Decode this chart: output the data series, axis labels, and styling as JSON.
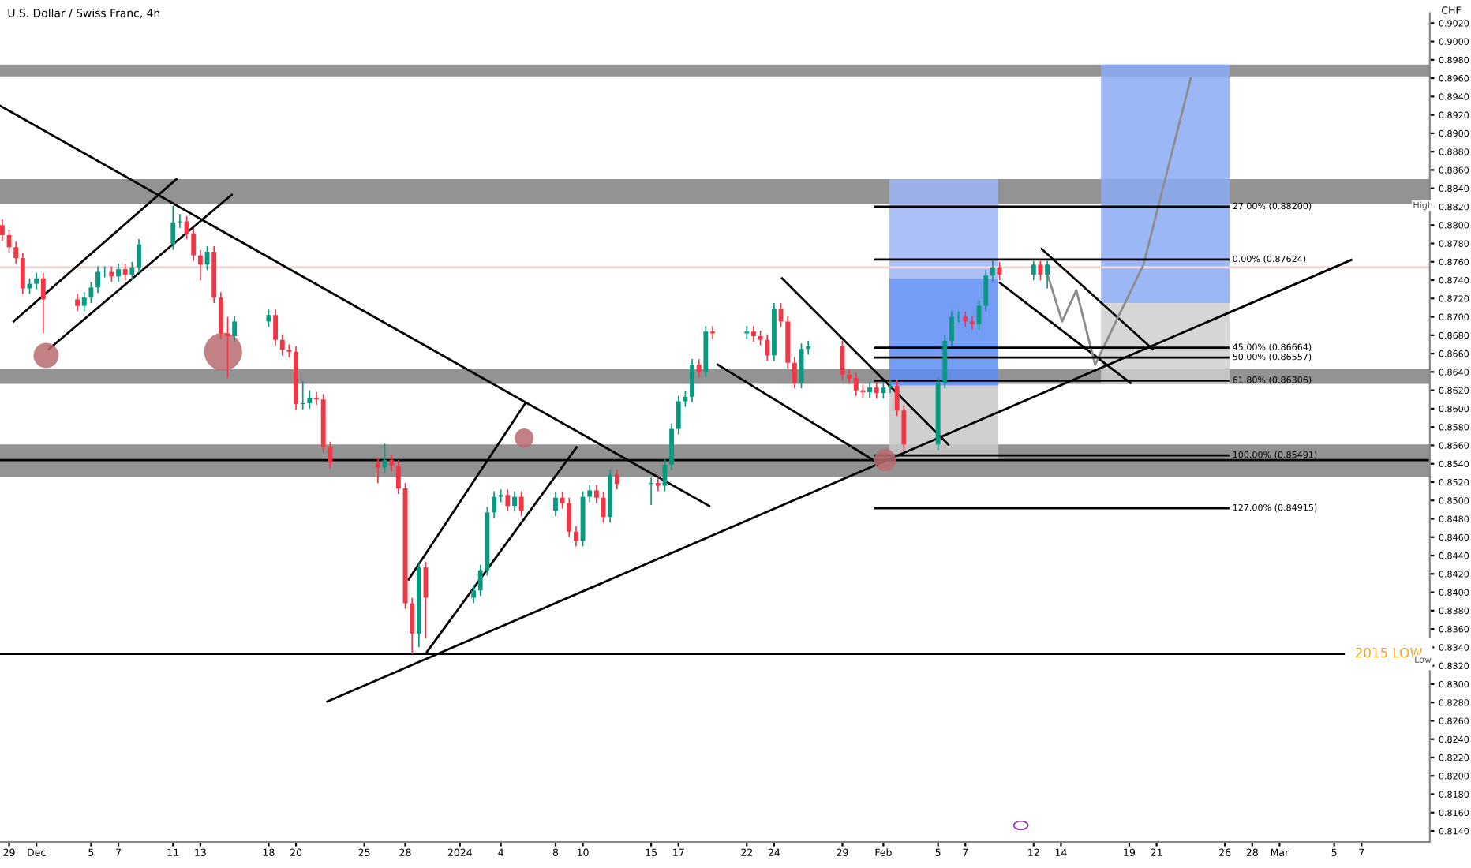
{
  "chart_data": {
    "type": "candlestick",
    "title": "U.S. Dollar / Swiss Franc, 4h",
    "ylabel": "CHF",
    "x": [
      "2023-11-28T12:00",
      "2023-11-29T00:00",
      "2023-11-29T12:00",
      "2023-11-30T00:00",
      "2023-11-30T12:00",
      "2023-12-01T00:00",
      "2023-12-01T12:00",
      "2023-12-04T00:00",
      "2023-12-04T12:00",
      "2023-12-05T00:00",
      "2023-12-05T12:00",
      "2023-12-06T00:00",
      "2023-12-06T12:00",
      "2023-12-07T00:00",
      "2023-12-07T12:00",
      "2023-12-08T00:00",
      "2023-12-08T12:00",
      "2023-12-11T00:00",
      "2023-12-11T12:00",
      "2023-12-12T00:00",
      "2023-12-12T12:00",
      "2023-12-13T00:00",
      "2023-12-13T12:00",
      "2023-12-14T00:00",
      "2023-12-14T12:00",
      "2023-12-15T00:00",
      "2023-12-15T12:00",
      "2023-12-18T00:00",
      "2023-12-18T12:00",
      "2023-12-19T00:00",
      "2023-12-19T12:00",
      "2023-12-20T00:00",
      "2023-12-20T12:00",
      "2023-12-21T00:00",
      "2023-12-21T12:00",
      "2023-12-22T00:00",
      "2023-12-22T12:00",
      "2023-12-26T00:00",
      "2023-12-26T12:00",
      "2023-12-27T00:00",
      "2023-12-27T12:00",
      "2023-12-28T00:00",
      "2023-12-28T12:00",
      "2023-12-29T00:00",
      "2023-12-29T12:00",
      "2024-01-02T00:00",
      "2024-01-02T12:00",
      "2024-01-03T00:00",
      "2024-01-03T12:00",
      "2024-01-04T00:00",
      "2024-01-04T12:00",
      "2024-01-05T00:00",
      "2024-01-05T12:00",
      "2024-01-08T00:00",
      "2024-01-08T12:00",
      "2024-01-09T00:00",
      "2024-01-09T12:00",
      "2024-01-10T00:00",
      "2024-01-10T12:00",
      "2024-01-11T00:00",
      "2024-01-11T12:00",
      "2024-01-12T00:00",
      "2024-01-12T12:00",
      "2024-01-15T00:00",
      "2024-01-15T12:00",
      "2024-01-16T00:00",
      "2024-01-16T12:00",
      "2024-01-17T00:00",
      "2024-01-17T12:00",
      "2024-01-18T00:00",
      "2024-01-18T12:00",
      "2024-01-19T00:00",
      "2024-01-19T12:00",
      "2024-01-22T00:00",
      "2024-01-22T12:00",
      "2024-01-23T00:00",
      "2024-01-23T12:00",
      "2024-01-24T00:00",
      "2024-01-24T12:00",
      "2024-01-25T00:00",
      "2024-01-25T12:00",
      "2024-01-26T00:00",
      "2024-01-26T12:00",
      "2024-01-29T00:00",
      "2024-01-29T12:00",
      "2024-01-30T00:00",
      "2024-01-30T12:00",
      "2024-01-31T00:00",
      "2024-01-31T12:00",
      "2024-02-01T00:00",
      "2024-02-01T12:00",
      "2024-02-02T00:00",
      "2024-02-02T12:00",
      "2024-02-05T00:00",
      "2024-02-05T12:00",
      "2024-02-06T00:00",
      "2024-02-06T12:00",
      "2024-02-07T00:00",
      "2024-02-07T12:00",
      "2024-02-08T00:00",
      "2024-02-08T12:00",
      "2024-02-09T00:00",
      "2024-02-09T12:00",
      "2024-02-12T00:00",
      "2024-02-12T12:00",
      "2024-02-13T00:00"
    ],
    "ohlc": [
      [
        0.88,
        0.8806,
        0.8783,
        0.8789
      ],
      [
        0.8789,
        0.8795,
        0.877,
        0.8776
      ],
      [
        0.8776,
        0.8782,
        0.8758,
        0.8764
      ],
      [
        0.8764,
        0.877,
        0.8725,
        0.8731
      ],
      [
        0.8731,
        0.8742,
        0.8725,
        0.8736
      ],
      [
        0.8736,
        0.8748,
        0.873,
        0.8742
      ],
      [
        0.8742,
        0.8748,
        0.8682,
        0.8719
      ],
      [
        0.8719,
        0.8725,
        0.8706,
        0.8712
      ],
      [
        0.8712,
        0.8727,
        0.8706,
        0.8721
      ],
      [
        0.8721,
        0.8738,
        0.8715,
        0.8732
      ],
      [
        0.8732,
        0.8755,
        0.8726,
        0.8749
      ],
      [
        0.8749,
        0.8755,
        0.8743,
        0.8749
      ],
      [
        0.8749,
        0.8755,
        0.8738,
        0.8744
      ],
      [
        0.8744,
        0.8758,
        0.8738,
        0.8752
      ],
      [
        0.8752,
        0.8758,
        0.874,
        0.8746
      ],
      [
        0.8746,
        0.876,
        0.874,
        0.8754
      ],
      [
        0.8754,
        0.8785,
        0.8748,
        0.8779
      ],
      [
        0.8779,
        0.8821,
        0.8773,
        0.8803
      ],
      [
        0.8803,
        0.8812,
        0.8797,
        0.8804
      ],
      [
        0.8804,
        0.881,
        0.8785,
        0.8791
      ],
      [
        0.8791,
        0.8797,
        0.8761,
        0.8767
      ],
      [
        0.8767,
        0.8773,
        0.874,
        0.8757
      ],
      [
        0.8757,
        0.8777,
        0.8751,
        0.8771
      ],
      [
        0.8771,
        0.8777,
        0.8715,
        0.8721
      ],
      [
        0.8721,
        0.8727,
        0.8676,
        0.8682
      ],
      [
        0.8682,
        0.87,
        0.8633,
        0.8679
      ],
      [
        0.8679,
        0.8701,
        0.8673,
        0.8695
      ],
      [
        0.8695,
        0.8708,
        0.8689,
        0.8702
      ],
      [
        0.8702,
        0.8708,
        0.8669,
        0.8675
      ],
      [
        0.8675,
        0.8681,
        0.8658,
        0.8664
      ],
      [
        0.8664,
        0.867,
        0.8656,
        0.8662
      ],
      [
        0.8662,
        0.8668,
        0.8599,
        0.8605
      ],
      [
        0.8605,
        0.863,
        0.8599,
        0.8606
      ],
      [
        0.8606,
        0.862,
        0.86,
        0.8612
      ],
      [
        0.8612,
        0.8618,
        0.8604,
        0.861
      ],
      [
        0.861,
        0.8616,
        0.8552,
        0.8558
      ],
      [
        0.8558,
        0.8564,
        0.8535,
        0.8541
      ],
      [
        0.8541,
        0.8547,
        0.8519,
        0.8536
      ],
      [
        0.8536,
        0.8562,
        0.853,
        0.8544
      ],
      [
        0.8544,
        0.855,
        0.8532,
        0.8538
      ],
      [
        0.8538,
        0.8544,
        0.8507,
        0.8513
      ],
      [
        0.8513,
        0.8519,
        0.8382,
        0.8388
      ],
      [
        0.8388,
        0.8394,
        0.8333,
        0.8355
      ],
      [
        0.8355,
        0.8433,
        0.834,
        0.8427
      ],
      [
        0.8427,
        0.8433,
        0.835,
        0.8394
      ],
      [
        0.8394,
        0.8408,
        0.8388,
        0.8402
      ],
      [
        0.8402,
        0.843,
        0.8396,
        0.8424
      ],
      [
        0.8424,
        0.8493,
        0.8418,
        0.8487
      ],
      [
        0.8487,
        0.851,
        0.8481,
        0.8504
      ],
      [
        0.8504,
        0.8512,
        0.8498,
        0.8506
      ],
      [
        0.8506,
        0.8512,
        0.8488,
        0.8494
      ],
      [
        0.8494,
        0.851,
        0.8488,
        0.8504
      ],
      [
        0.8504,
        0.851,
        0.8483,
        0.8489
      ],
      [
        0.8489,
        0.8509,
        0.8483,
        0.8503
      ],
      [
        0.8503,
        0.8509,
        0.8491,
        0.8497
      ],
      [
        0.8497,
        0.8503,
        0.846,
        0.8466
      ],
      [
        0.8466,
        0.8472,
        0.845,
        0.8456
      ],
      [
        0.8456,
        0.851,
        0.845,
        0.8504
      ],
      [
        0.8504,
        0.8517,
        0.8498,
        0.8511
      ],
      [
        0.8511,
        0.8517,
        0.8497,
        0.8503
      ],
      [
        0.8503,
        0.8509,
        0.8476,
        0.8482
      ],
      [
        0.8482,
        0.8534,
        0.8476,
        0.8528
      ],
      [
        0.8528,
        0.8534,
        0.8512,
        0.8518
      ],
      [
        0.8518,
        0.8525,
        0.8495,
        0.8519
      ],
      [
        0.8519,
        0.8525,
        0.851,
        0.8516
      ],
      [
        0.8516,
        0.8545,
        0.851,
        0.8539
      ],
      [
        0.8539,
        0.8584,
        0.8533,
        0.8578
      ],
      [
        0.8578,
        0.8614,
        0.8572,
        0.8608
      ],
      [
        0.8608,
        0.8619,
        0.8602,
        0.8613
      ],
      [
        0.8613,
        0.8654,
        0.8607,
        0.8648
      ],
      [
        0.8648,
        0.8654,
        0.8634,
        0.864
      ],
      [
        0.864,
        0.869,
        0.8634,
        0.8684
      ],
      [
        0.8684,
        0.869,
        0.8676,
        0.8682
      ],
      [
        0.8682,
        0.869,
        0.8676,
        0.8684
      ],
      [
        0.8684,
        0.869,
        0.8673,
        0.8679
      ],
      [
        0.8679,
        0.8685,
        0.8669,
        0.8675
      ],
      [
        0.8675,
        0.8681,
        0.8652,
        0.8658
      ],
      [
        0.8658,
        0.8715,
        0.8652,
        0.8709
      ],
      [
        0.8709,
        0.8715,
        0.8689,
        0.8695
      ],
      [
        0.8695,
        0.8701,
        0.8644,
        0.865
      ],
      [
        0.865,
        0.8656,
        0.8622,
        0.8628
      ],
      [
        0.8628,
        0.8671,
        0.8622,
        0.8665
      ],
      [
        0.8665,
        0.8674,
        0.8659,
        0.8668
      ],
      [
        0.8668,
        0.8674,
        0.8631,
        0.8637
      ],
      [
        0.8637,
        0.8643,
        0.8627,
        0.8633
      ],
      [
        0.8633,
        0.8639,
        0.8614,
        0.862
      ],
      [
        0.862,
        0.8626,
        0.8612,
        0.8618
      ],
      [
        0.8618,
        0.8629,
        0.8612,
        0.8623
      ],
      [
        0.8623,
        0.8629,
        0.8611,
        0.8617
      ],
      [
        0.8617,
        0.8629,
        0.8611,
        0.8623
      ],
      [
        0.8623,
        0.8631,
        0.8617,
        0.8625
      ],
      [
        0.8625,
        0.8631,
        0.8592,
        0.8598
      ],
      [
        0.8598,
        0.8604,
        0.8554,
        0.8561
      ],
      [
        0.8561,
        0.8634,
        0.8555,
        0.8628
      ],
      [
        0.8628,
        0.868,
        0.8622,
        0.8674
      ],
      [
        0.8674,
        0.8706,
        0.8668,
        0.87
      ],
      [
        0.87,
        0.8706,
        0.8694,
        0.87
      ],
      [
        0.87,
        0.8706,
        0.8689,
        0.8695
      ],
      [
        0.8695,
        0.8701,
        0.8686,
        0.8692
      ],
      [
        0.8692,
        0.8718,
        0.8686,
        0.8712
      ],
      [
        0.8712,
        0.8751,
        0.8706,
        0.8745
      ],
      [
        0.8745,
        0.8762,
        0.8739,
        0.8754
      ],
      [
        0.8754,
        0.876,
        0.874,
        0.8746
      ],
      [
        0.8746,
        0.8761,
        0.874,
        0.8757
      ],
      [
        0.8757,
        0.8761,
        0.874,
        0.8746
      ],
      [
        0.8746,
        0.8761,
        0.8731,
        0.8757
      ]
    ],
    "series": [
      {
        "type": "line",
        "x": [
          "2023-11-28T08:00",
          "2024-01-19T06:00"
        ],
        "values": [
          0.893,
          0.8494
        ],
        "color": "#000000"
      },
      {
        "type": "line",
        "x": [
          "2023-12-22T07:00",
          "2024-03-06T06:00"
        ],
        "values": [
          0.8281,
          0.8762
        ],
        "color": "#000000"
      },
      {
        "type": "line",
        "x": [
          "2023-11-29T08:00",
          "2023-12-11T06:00"
        ],
        "values": [
          0.8695,
          0.885
        ],
        "color": "#000000"
      },
      {
        "type": "line",
        "x": [
          "2023-12-01T22:00",
          "2023-12-15T07:00"
        ],
        "values": [
          0.8665,
          0.8833
        ],
        "color": "#000000"
      },
      {
        "type": "line",
        "x": [
          "2023-12-28T06:00",
          "2024-01-05T19:00"
        ],
        "values": [
          0.8414,
          0.8606
        ],
        "color": "#000000"
      },
      {
        "type": "line",
        "x": [
          "2023-12-29T14:00",
          "2024-01-09T13:00"
        ],
        "values": [
          0.8335,
          0.8558
        ],
        "color": "#000000"
      },
      {
        "type": "line",
        "x": [
          "2024-01-24T14:00",
          "2024-02-05T18:00"
        ],
        "values": [
          0.8742,
          0.8561
        ],
        "color": "#000000"
      },
      {
        "type": "line",
        "x": [
          "2024-01-19T21:00",
          "2024-01-31T14:00"
        ],
        "values": [
          0.8648,
          0.8541
        ],
        "color": "#000000"
      },
      {
        "type": "line",
        "x": [
          "2024-02-12T14:00",
          "2024-02-20T17:00"
        ],
        "values": [
          0.8774,
          0.8665
        ],
        "color": "#000000"
      },
      {
        "type": "line",
        "x": [
          "2024-02-09T13:00",
          "2024-02-19T02:00"
        ],
        "values": [
          0.8737,
          0.8628
        ],
        "color": "#000000"
      },
      {
        "type": "line",
        "x": [
          "2024-02-12T23:00",
          "2024-02-14T02:00",
          "2024-02-15T03:00",
          "2024-02-16T12:00",
          "2024-02-20T01:00",
          "2024-02-23T12:00"
        ],
        "values": [
          0.8749,
          0.8695,
          0.8729,
          0.8648,
          0.8757,
          0.896
        ],
        "color": "#8c8c8c"
      },
      {
        "type": "line",
        "name": "27.00% (0.88200)",
        "x": [
          "2024-01-31T10:00",
          "2024-02-26T06:00"
        ],
        "values": [
          0.882,
          0.882
        ],
        "color": "#000000"
      },
      {
        "type": "line",
        "name": "0.00% (0.87624)",
        "x": [
          "2024-01-31T10:00",
          "2024-02-26T06:00"
        ],
        "values": [
          0.87624,
          0.87624
        ],
        "color": "#000000"
      },
      {
        "type": "line",
        "name": "45.00% (0.86664)",
        "x": [
          "2024-01-31T10:00",
          "2024-02-26T06:00"
        ],
        "values": [
          0.86664,
          0.86664
        ],
        "color": "#000000"
      },
      {
        "type": "line",
        "name": "50.00% (0.86557)",
        "x": [
          "2024-01-31T10:00",
          "2024-02-26T06:00"
        ],
        "values": [
          0.86557,
          0.86557
        ],
        "color": "#000000"
      },
      {
        "type": "line",
        "name": "61.80% (0.86306)",
        "x": [
          "2024-01-31T10:00",
          "2024-02-26T06:00"
        ],
        "values": [
          0.86306,
          0.86306
        ],
        "color": "#000000"
      },
      {
        "type": "line",
        "name": "100.00% (0.85491)",
        "x": [
          "2024-01-31T10:00",
          "2024-02-26T06:00"
        ],
        "values": [
          0.85491,
          0.85491
        ],
        "color": "#000000"
      },
      {
        "type": "line",
        "name": "127.00% (0.84915)",
        "x": [
          "2024-01-31T10:00",
          "2024-02-26T06:00"
        ],
        "values": [
          0.84915,
          0.84915
        ],
        "color": "#000000"
      },
      {
        "type": "bubble",
        "x": [
          "2023-12-01T17:00",
          "2023-12-14T16:00",
          "2024-01-05T17:00",
          "2024-02-01T03:00"
        ],
        "values": [
          0.8658,
          0.8662,
          0.8568,
          0.8544
        ],
        "sizes": [
          0.44,
          1,
          0.25,
          0.34
        ],
        "color": "#b86b70"
      }
    ],
    "bands": [
      {
        "axis": "y",
        "from": 0.8962,
        "to": 0.8975,
        "color": "#808080"
      },
      {
        "axis": "y",
        "from": 0.8823,
        "to": 0.885,
        "color": "#808080"
      },
      {
        "axis": "y",
        "from": 0.8627,
        "to": 0.8643,
        "color": "#808080"
      },
      {
        "axis": "y",
        "from": 0.8526,
        "to": 0.8561,
        "color": "#808080"
      }
    ],
    "ref_lines": [
      {
        "axis": "y",
        "value": 0.8754,
        "color": "#f3d6d6"
      },
      {
        "axis": "y",
        "value": 0.8544,
        "color": "#000000"
      },
      {
        "axis": "y",
        "value": 0.8333,
        "label": "2015 LOW",
        "color": "#000000"
      }
    ],
    "annotations": [
      {
        "text": "High",
        "x": "2024-03-11T12:00",
        "y": 0.8821
      },
      {
        "text": "Low",
        "x": "2024-03-11T12:00",
        "y": 0.8326
      }
    ],
    "xlim": [
      "2023-11-28T08:00",
      "2024-03-12T00:00"
    ],
    "xticks": [
      {
        "value": "2023-11-29",
        "label": "29"
      },
      {
        "value": "2023-12-01",
        "label": "Dec"
      },
      {
        "value": "2023-12-05",
        "label": "5"
      },
      {
        "value": "2023-12-07",
        "label": "7"
      },
      {
        "value": "2023-12-11",
        "label": "11"
      },
      {
        "value": "2023-12-13",
        "label": "13"
      },
      {
        "value": "2023-12-18",
        "label": "18"
      },
      {
        "value": "2023-12-20",
        "label": "20"
      },
      {
        "value": "2023-12-25",
        "label": "25"
      },
      {
        "value": "2023-12-28",
        "label": "28"
      },
      {
        "value": "2024-01-01",
        "label": "2024"
      },
      {
        "value": "2024-01-04",
        "label": "4"
      },
      {
        "value": "2024-01-08",
        "label": "8"
      },
      {
        "value": "2024-01-10",
        "label": "10"
      },
      {
        "value": "2024-01-15",
        "label": "15"
      },
      {
        "value": "2024-01-17",
        "label": "17"
      },
      {
        "value": "2024-01-22",
        "label": "22"
      },
      {
        "value": "2024-01-24",
        "label": "24"
      },
      {
        "value": "2024-01-29",
        "label": "29"
      },
      {
        "value": "2024-02-01",
        "label": "Feb"
      },
      {
        "value": "2024-02-05",
        "label": "5"
      },
      {
        "value": "2024-02-07",
        "label": "7"
      },
      {
        "value": "2024-02-12",
        "label": "12"
      },
      {
        "value": "2024-02-14",
        "label": "14"
      },
      {
        "value": "2024-02-19",
        "label": "19"
      },
      {
        "value": "2024-02-21",
        "label": "21"
      },
      {
        "value": "2024-02-26",
        "label": "26"
      },
      {
        "value": "2024-02-28",
        "label": "28"
      },
      {
        "value": "2024-03-01",
        "label": "Mar"
      },
      {
        "value": "2024-03-05",
        "label": "5"
      },
      {
        "value": "2024-03-07",
        "label": "7"
      }
    ],
    "ylim": [
      0.8128,
      0.9031
    ],
    "yticks": [
      {
        "value": 0.814,
        "label": "0.8140"
      },
      {
        "value": 0.816,
        "label": "0.8160"
      },
      {
        "value": 0.818,
        "label": "0.8180"
      },
      {
        "value": 0.82,
        "label": "0.8200"
      },
      {
        "value": 0.822,
        "label": "0.8220"
      },
      {
        "value": 0.824,
        "label": "0.8240"
      },
      {
        "value": 0.826,
        "label": "0.8260"
      },
      {
        "value": 0.828,
        "label": "0.8280"
      },
      {
        "value": 0.83,
        "label": "0.8300"
      },
      {
        "value": 0.832,
        "label": "0.8320"
      },
      {
        "value": 0.834,
        "label": "0.8340"
      },
      {
        "value": 0.836,
        "label": "0.8360"
      },
      {
        "value": 0.838,
        "label": "0.8380"
      },
      {
        "value": 0.84,
        "label": "0.8400"
      },
      {
        "value": 0.842,
        "label": "0.8420"
      },
      {
        "value": 0.844,
        "label": "0.8440"
      },
      {
        "value": 0.846,
        "label": "0.8460"
      },
      {
        "value": 0.848,
        "label": "0.8480"
      },
      {
        "value": 0.85,
        "label": "0.8500"
      },
      {
        "value": 0.852,
        "label": "0.8520"
      },
      {
        "value": 0.854,
        "label": "0.8540"
      },
      {
        "value": 0.856,
        "label": "0.8560"
      },
      {
        "value": 0.858,
        "label": "0.8580"
      },
      {
        "value": 0.86,
        "label": "0.8600"
      },
      {
        "value": 0.862,
        "label": "0.8620"
      },
      {
        "value": 0.864,
        "label": "0.8640"
      },
      {
        "value": 0.866,
        "label": "0.8660"
      },
      {
        "value": 0.868,
        "label": "0.8680"
      },
      {
        "value": 0.87,
        "label": "0.8700"
      },
      {
        "value": 0.872,
        "label": "0.8720"
      },
      {
        "value": 0.874,
        "label": "0.8740"
      },
      {
        "value": 0.876,
        "label": "0.8760"
      },
      {
        "value": 0.878,
        "label": "0.8780"
      },
      {
        "value": 0.88,
        "label": "0.8800"
      },
      {
        "value": 0.882,
        "label": "0.8820"
      },
      {
        "value": 0.884,
        "label": "0.8840"
      },
      {
        "value": 0.886,
        "label": "0.8860"
      },
      {
        "value": 0.888,
        "label": "0.8880"
      },
      {
        "value": 0.89,
        "label": "0.8900"
      },
      {
        "value": 0.892,
        "label": "0.8920"
      },
      {
        "value": 0.894,
        "label": "0.8940"
      },
      {
        "value": 0.896,
        "label": "0.8960"
      },
      {
        "value": 0.898,
        "label": "0.8980"
      },
      {
        "value": 0.9,
        "label": "0.9000"
      },
      {
        "value": 0.902,
        "label": "0.9020"
      }
    ]
  }
}
